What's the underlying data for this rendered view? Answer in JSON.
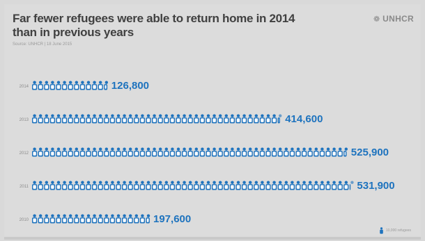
{
  "header": {
    "title_line1": "Far fewer refugees were able to return home in 2014",
    "title_line2": "than in previous years",
    "source": "Source: UNHCR | 18 June 2015"
  },
  "logo": {
    "icon": "unhcr-emblem-icon",
    "text": "UNHCR"
  },
  "legend": {
    "icon": "person-icon",
    "label": "10,000 refugees"
  },
  "colors": {
    "accent": "#1e73be",
    "icon_fill": "#ffffff",
    "year_label": "#8a8a8a",
    "text": "#404040"
  },
  "chart_data": {
    "type": "bar",
    "style": "pictogram",
    "unit_per_icon": 10000,
    "categories": [
      "2014",
      "2013",
      "2012",
      "2011",
      "2010"
    ],
    "values": [
      126800,
      414600,
      525900,
      531900,
      197600
    ],
    "labels": [
      "126,800",
      "414,600",
      "525,900",
      "531,900",
      "197,600"
    ],
    "title": "Far fewer refugees were able to return home in 2014 than in previous years",
    "legend_position": "bottom-right"
  }
}
